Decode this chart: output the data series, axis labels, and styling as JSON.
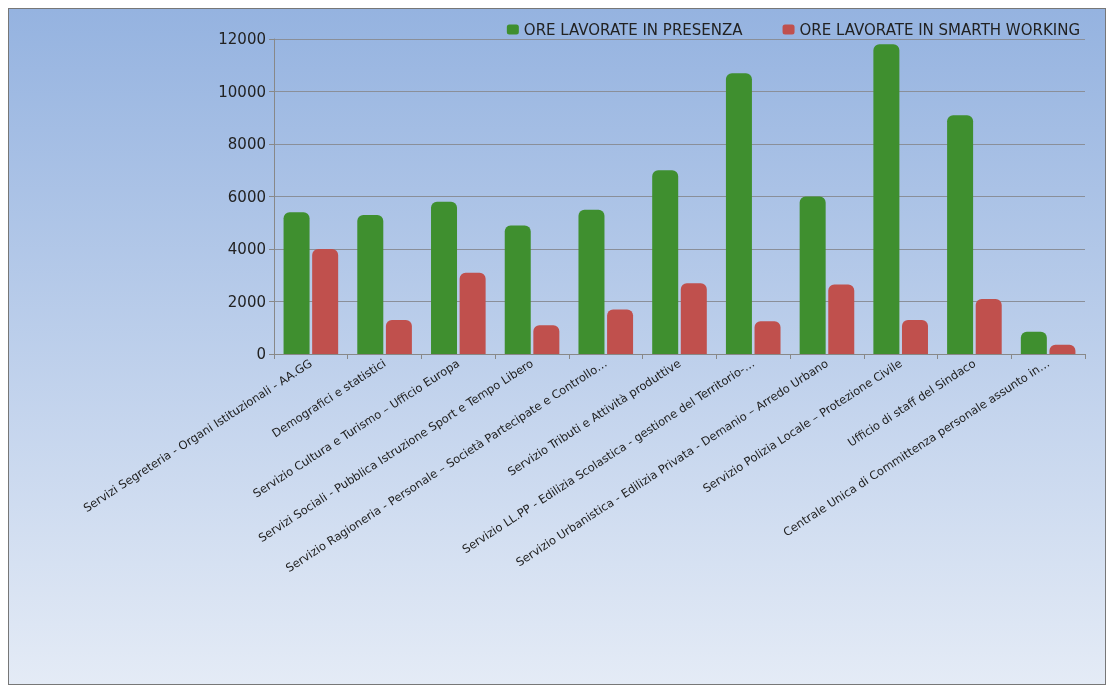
{
  "chart_data": {
    "type": "bar",
    "categories": [
      "Servizi Segreteria - Organi Istituzionali - AA.GG",
      "Demografici e statistici",
      "Servizio Cultura e Turismo – Ufficio Europa",
      "Servizi Sociali - Pubblica Istruzione Sport e Tempo Libero",
      "Servizio Ragioneria - Personale – Società Partecipate e Controllo…",
      "Servizio Tributi e Attività produttive",
      "Servizio LL.PP - Edilizia Scolastica - gestione del Territorio-…",
      "Servizio Urbanistica - Edilizia Privata - Demanio – Arredo Urbano",
      "Servizio Polizia Locale – Protezione Civile",
      "Ufficio di staff del Sindaco",
      "Centrale Unica di Committenza personale assunto in…"
    ],
    "series": [
      {
        "name": "ORE LAVORATE IN PRESENZA",
        "color": "#3f8f2f",
        "values": [
          5400,
          5300,
          5800,
          4900,
          5500,
          7000,
          10700,
          6000,
          11800,
          9100,
          850
        ]
      },
      {
        "name": "ORE LAVORATE IN SMARTH WORKING",
        "color": "#c0504d",
        "values": [
          4000,
          1300,
          3100,
          1100,
          1700,
          2700,
          1250,
          2650,
          1300,
          2100,
          350
        ]
      }
    ],
    "ylim": [
      0,
      12000
    ],
    "yticks": [
      0,
      2000,
      4000,
      6000,
      8000,
      10000,
      12000
    ],
    "grid": "y",
    "legend": "top right"
  }
}
